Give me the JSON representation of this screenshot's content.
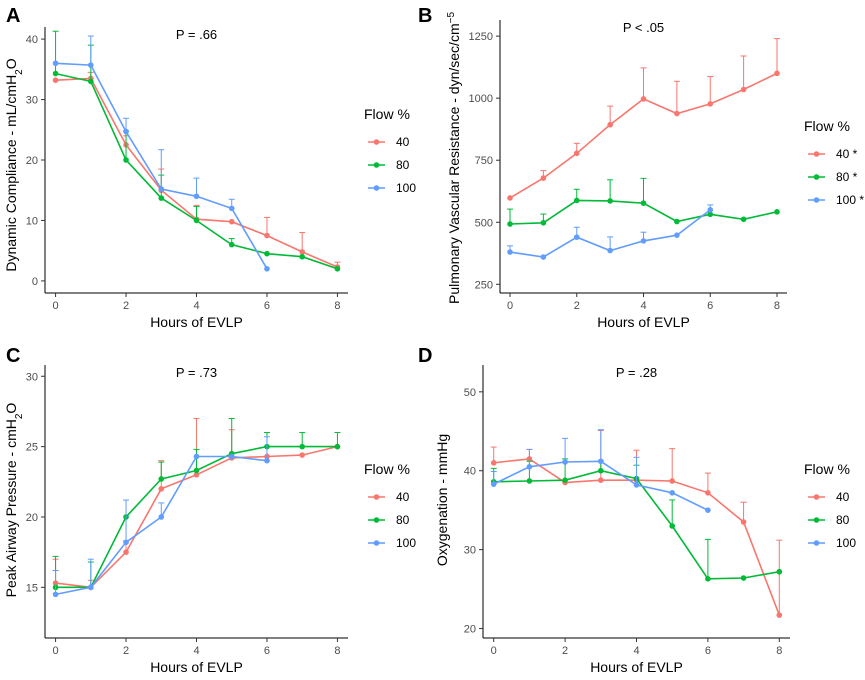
{
  "colors": {
    "40": "#F8766D",
    "80": "#00BA38",
    "100": "#619CFF"
  },
  "chart_data": [
    {
      "type": "line",
      "panel": "A",
      "pvalue": "P = .66",
      "xlabel": "Hours of EVLP",
      "ylabel": "Dynamic Compliance - mL/cmH",
      "ylabel_sub": "2",
      "ylabel_end": "O",
      "xlim": [
        -0.3,
        8.3
      ],
      "ylim": [
        -2,
        42
      ],
      "xticks": [
        0,
        2,
        4,
        6,
        8
      ],
      "yticks": [
        0,
        10,
        20,
        30,
        40
      ],
      "legend_title": "Flow %",
      "series": [
        {
          "name": "40",
          "label": "40",
          "x": [
            0,
            1,
            2,
            3,
            4,
            5,
            6,
            7,
            8
          ],
          "y": [
            33.2,
            33.5,
            22.5,
            15.0,
            10.2,
            9.8,
            7.5,
            4.8,
            2.3
          ],
          "err": [
            null,
            1.0,
            1.5,
            3.5,
            2.3,
            null,
            3.0,
            3.2,
            0.8
          ]
        },
        {
          "name": "80",
          "label": "80",
          "x": [
            0,
            1,
            2,
            3,
            4,
            5,
            6,
            7,
            8
          ],
          "y": [
            34.3,
            33.0,
            20.0,
            13.7,
            10.0,
            6.0,
            4.5,
            4.0,
            2.0
          ],
          "err": [
            7.0,
            6.0,
            4.8,
            3.8,
            2.3,
            1.0,
            null,
            null,
            null
          ]
        },
        {
          "name": "100",
          "label": "100",
          "x": [
            0,
            1,
            2,
            3,
            4,
            5,
            6
          ],
          "y": [
            36.0,
            35.7,
            24.7,
            15.2,
            14.0,
            12.0,
            2.0
          ],
          "err": [
            null,
            4.8,
            2.2,
            6.5,
            3.0,
            1.5,
            null
          ]
        }
      ]
    },
    {
      "type": "line",
      "panel": "B",
      "pvalue": "P < .05",
      "xlabel": "Hours of EVLP",
      "ylabel": "Pulmonary Vascular Resistance - dyn/sec/cm",
      "ylabel_sup": "−5",
      "xlim": [
        -0.3,
        8.3
      ],
      "ylim": [
        215,
        1315
      ],
      "xticks": [
        0,
        2,
        4,
        6,
        8
      ],
      "yticks": [
        250,
        500,
        750,
        1000,
        1250
      ],
      "legend_title": "Flow %",
      "series": [
        {
          "name": "40",
          "label": "40 *",
          "x": [
            0,
            1,
            2,
            3,
            4,
            5,
            6,
            7,
            8
          ],
          "y": [
            598,
            678,
            778,
            893,
            997,
            938,
            977,
            1035,
            1100
          ],
          "err": [
            null,
            30,
            40,
            75,
            125,
            130,
            110,
            135,
            140
          ]
        },
        {
          "name": "80",
          "label": "80 *",
          "x": [
            0,
            1,
            2,
            3,
            4,
            5,
            6,
            7,
            8
          ],
          "y": [
            493,
            498,
            588,
            586,
            577,
            503,
            532,
            512,
            542
          ],
          "err": [
            60,
            35,
            45,
            85,
            100,
            null,
            null,
            null,
            null
          ]
        },
        {
          "name": "100",
          "label": "100 *",
          "x": [
            0,
            1,
            2,
            3,
            4,
            5,
            6
          ],
          "y": [
            380,
            360,
            440,
            386,
            425,
            448,
            550
          ],
          "err": [
            25,
            null,
            40,
            55,
            35,
            null,
            20
          ]
        }
      ]
    },
    {
      "type": "line",
      "panel": "C",
      "pvalue": "P = .73",
      "xlabel": "Hours of EVLP",
      "ylabel": "Peak Airway Pressure - cmH",
      "ylabel_sub": "2",
      "ylabel_end": "O",
      "xlim": [
        -0.3,
        8.3
      ],
      "ylim": [
        11.4,
        30.8
      ],
      "xticks": [
        0,
        2,
        4,
        6,
        8
      ],
      "yticks": [
        15,
        20,
        25,
        30
      ],
      "legend_title": "Flow %",
      "series": [
        {
          "name": "40",
          "label": "40",
          "x": [
            0,
            1,
            2,
            3,
            4,
            5,
            6,
            7,
            8
          ],
          "y": [
            15.3,
            15.0,
            17.5,
            22.0,
            23.0,
            24.2,
            24.3,
            24.4,
            25.0
          ],
          "err": [
            1.7,
            0.5,
            0.8,
            2.0,
            4.0,
            2.0,
            null,
            null,
            null
          ]
        },
        {
          "name": "80",
          "label": "80",
          "x": [
            0,
            1,
            2,
            3,
            4,
            5,
            6,
            7,
            8
          ],
          "y": [
            15.0,
            15.0,
            20.0,
            22.7,
            23.3,
            24.5,
            25.0,
            25.0,
            25.0
          ],
          "err": [
            2.2,
            1.8,
            null,
            1.2,
            1.5,
            2.5,
            1.0,
            1.0,
            1.0
          ]
        },
        {
          "name": "100",
          "label": "100",
          "x": [
            0,
            1,
            2,
            3,
            4,
            5,
            6
          ],
          "y": [
            14.5,
            15.0,
            18.2,
            20.0,
            24.3,
            24.3,
            24.0
          ],
          "err": [
            1.7,
            2.0,
            3.0,
            1.0,
            null,
            null,
            1.7
          ]
        }
      ]
    },
    {
      "type": "line",
      "panel": "D",
      "pvalue": "P = .28",
      "xlabel": "Hours of EVLP",
      "ylabel": "Oxygenation - mmHg",
      "xlim": [
        -0.3,
        8.3
      ],
      "ylim": [
        18.8,
        53.4
      ],
      "xticks": [
        0,
        2,
        4,
        6,
        8
      ],
      "yticks": [
        20,
        30,
        40,
        50
      ],
      "legend_title": "Flow %",
      "series": [
        {
          "name": "40",
          "label": "40",
          "x": [
            0,
            1,
            2,
            3,
            4,
            5,
            6,
            7,
            8
          ],
          "y": [
            41.0,
            41.5,
            38.5,
            38.8,
            38.8,
            38.7,
            37.2,
            33.5,
            21.7
          ],
          "err": [
            2.0,
            1.2,
            null,
            6.3,
            3.8,
            4.1,
            2.5,
            2.5,
            9.5
          ]
        },
        {
          "name": "80",
          "label": "80",
          "x": [
            0,
            1,
            2,
            3,
            4,
            5,
            6,
            7,
            8
          ],
          "y": [
            38.6,
            38.7,
            38.8,
            40.0,
            39.0,
            33.0,
            26.3,
            26.4,
            27.2
          ],
          "err": [
            1.7,
            2.5,
            2.7,
            1.2,
            1.7,
            3.3,
            5.0,
            null,
            null
          ]
        },
        {
          "name": "100",
          "label": "100",
          "x": [
            0,
            1,
            2,
            3,
            4,
            5,
            6
          ],
          "y": [
            38.3,
            40.5,
            41.1,
            41.2,
            38.2,
            37.2,
            35.0
          ],
          "err": [
            1.6,
            2.2,
            3.0,
            4.0,
            3.5,
            null,
            null
          ]
        }
      ]
    }
  ]
}
